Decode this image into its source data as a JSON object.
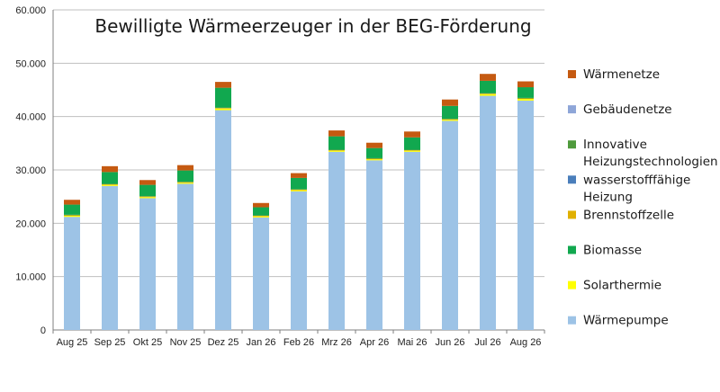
{
  "chart_data": {
    "type": "bar",
    "stacked": true,
    "title": "Bewilligte Wärmeerzeuger in der BEG-Förderung",
    "xlabel": "",
    "ylabel": "",
    "ylim": [
      0,
      60000
    ],
    "ytick_labels": [
      "0",
      "10.000",
      "20.000",
      "30.000",
      "40.000",
      "50.000",
      "60.000"
    ],
    "ytick_values": [
      0,
      10000,
      20000,
      30000,
      40000,
      50000,
      60000
    ],
    "grid": true,
    "legend_position": "right",
    "categories": [
      "Aug 25",
      "Sep 25",
      "Okt 25",
      "Nov 25",
      "Dez 25",
      "Jan 26",
      "Feb 26",
      "Mrz 26",
      "Apr 26",
      "Mai 26",
      "Jun 26",
      "Jul 26",
      "Aug 26"
    ],
    "series": [
      {
        "name": "Wärmepumpe",
        "color": "#9dc3e6",
        "values": [
          21200,
          27000,
          24700,
          27400,
          41200,
          21100,
          26000,
          33400,
          31800,
          33400,
          39200,
          43900,
          43000
        ]
      },
      {
        "name": "Solarthermie",
        "color": "#ffff00",
        "values": [
          200,
          200,
          200,
          200,
          300,
          200,
          200,
          200,
          200,
          200,
          200,
          300,
          300
        ]
      },
      {
        "name": "Brennstoffzelle",
        "color": "#e0b000",
        "values": [
          100,
          100,
          100,
          100,
          100,
          100,
          100,
          100,
          100,
          100,
          100,
          100,
          100
        ]
      },
      {
        "name": "wasserstofffähige Heizung",
        "color": "#4a7ebb",
        "values": [
          0,
          0,
          0,
          0,
          0,
          0,
          0,
          0,
          0,
          0,
          0,
          0,
          0
        ]
      },
      {
        "name": "Innovative Heizungstechnologien",
        "color": "#4f9a3c",
        "values": [
          100,
          100,
          100,
          100,
          100,
          100,
          100,
          100,
          100,
          100,
          100,
          100,
          100
        ]
      },
      {
        "name": "Biomasse",
        "color": "#11a84f",
        "values": [
          1900,
          2200,
          2100,
          2100,
          3700,
          1500,
          2100,
          2500,
          1900,
          2300,
          2400,
          2300,
          2000
        ]
      },
      {
        "name": "Gebäudenetze",
        "color": "#8ea6d8",
        "values": [
          0,
          0,
          0,
          0,
          0,
          0,
          0,
          0,
          0,
          0,
          0,
          0,
          0
        ]
      },
      {
        "name": "Wärmenetze",
        "color": "#c55a11",
        "values": [
          900,
          1100,
          900,
          1000,
          1100,
          800,
          900,
          1100,
          1000,
          1100,
          1200,
          1300,
          1100
        ]
      }
    ],
    "legend_order": [
      "Wärmenetze",
      "Gebäudenetze",
      "Innovative Heizungstechnologien",
      "wasserstofffähige Heizung",
      "Brennstoffzelle",
      "Biomasse",
      "Solarthermie",
      "Wärmepumpe"
    ],
    "legend_text_lines": {
      "Wärmenetze": [
        "Wärmenetze"
      ],
      "Gebäudenetze": [
        "Gebäudenetze"
      ],
      "Innovative Heizungstechnologien": [
        "Innovative",
        "Heizungstechnologien"
      ],
      "wasserstofffähige Heizung": [
        "wasserstofffähige",
        "Heizung"
      ],
      "Brennstoffzelle": [
        "Brennstoffzelle"
      ],
      "Biomasse": [
        "Biomasse"
      ],
      "Solarthermie": [
        "Solarthermie"
      ],
      "Wärmepumpe": [
        "Wärmepumpe"
      ]
    }
  }
}
